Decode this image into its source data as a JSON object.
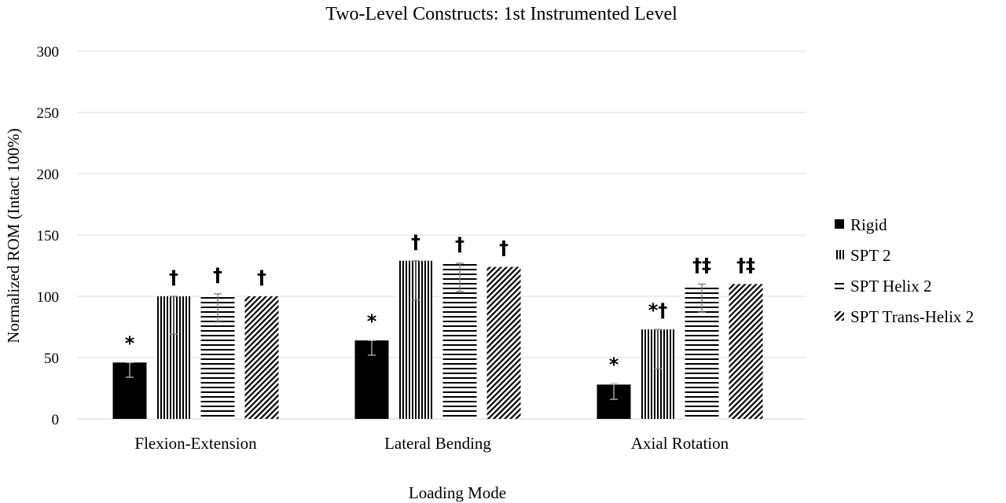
{
  "chart_data": {
    "type": "bar",
    "title": "Two-Level Constructs: 1st Instrumented Level",
    "xlabel": "Loading Mode",
    "ylabel": "Normalized ROM (Intact 100%)",
    "ylim": [
      0,
      300
    ],
    "yticks": [
      "0",
      "50",
      "100",
      "150",
      "200",
      "250",
      "300"
    ],
    "grid": true,
    "legend_position": "right",
    "categories": [
      "Flexion-Extension",
      "Lateral Bending",
      "Axial Rotation"
    ],
    "series": [
      {
        "name": "Rigid",
        "pattern": "solid",
        "values": [
          46,
          64,
          28
        ],
        "error_low": [
          34,
          52,
          16
        ],
        "error_high": [
          46,
          64,
          29
        ],
        "annotations": [
          "*",
          "*",
          "*"
        ]
      },
      {
        "name": "SPT 2",
        "pattern": "vertical",
        "values": [
          100,
          129,
          73
        ],
        "error_low": [
          69,
          97,
          41
        ],
        "error_high": [
          100,
          129,
          73
        ],
        "annotations": [
          "†",
          "†",
          "*†"
        ]
      },
      {
        "name": "SPT Helix 2",
        "pattern": "horizontal",
        "values": [
          101,
          127,
          109
        ],
        "error_low": [
          79,
          104,
          87
        ],
        "error_high": [
          102,
          127,
          110
        ],
        "annotations": [
          "†",
          "†",
          "†‡"
        ]
      },
      {
        "name": "SPT Trans-Helix 2",
        "pattern": "diagonal",
        "values": [
          100,
          124,
          110
        ],
        "error_low": [
          100,
          124,
          110
        ],
        "error_high": [
          100,
          124,
          110
        ],
        "annotations": [
          "†",
          "†",
          "†‡"
        ]
      }
    ]
  }
}
